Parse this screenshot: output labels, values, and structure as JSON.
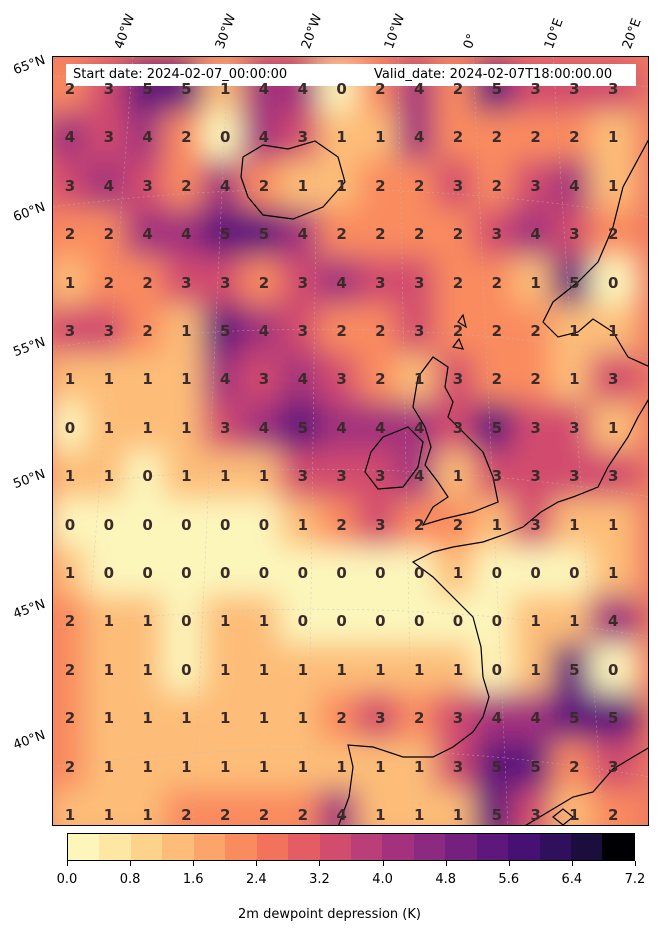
{
  "header": {
    "start_date": "Start date: 2024-02-07_00:00:00",
    "valid_date": "Valid_date: 2024-02-07T18:00:00.00"
  },
  "longitude_labels": [
    "40°W",
    "30°W",
    "20°W",
    "10°W",
    "0°",
    "10°E",
    "20°E"
  ],
  "latitude_labels": [
    "65°N",
    "60°N",
    "55°N",
    "50°N",
    "45°N",
    "40°N"
  ],
  "grid_values": [
    [
      2,
      3,
      5,
      5,
      1,
      4,
      4,
      0,
      2,
      4,
      2,
      5,
      3,
      3,
      3
    ],
    [
      4,
      3,
      4,
      2,
      0,
      4,
      3,
      1,
      1,
      4,
      2,
      2,
      2,
      2,
      1
    ],
    [
      3,
      4,
      3,
      2,
      4,
      2,
      1,
      1,
      2,
      2,
      3,
      2,
      3,
      4,
      1
    ],
    [
      2,
      2,
      4,
      4,
      5,
      5,
      4,
      2,
      2,
      2,
      2,
      3,
      4,
      3,
      2
    ],
    [
      1,
      2,
      2,
      3,
      3,
      2,
      3,
      4,
      3,
      3,
      2,
      2,
      1,
      5,
      0
    ],
    [
      3,
      3,
      2,
      1,
      5,
      4,
      3,
      2,
      2,
      3,
      2,
      2,
      2,
      1,
      1
    ],
    [
      1,
      1,
      1,
      1,
      4,
      3,
      4,
      3,
      2,
      1,
      3,
      2,
      2,
      1,
      3
    ],
    [
      0,
      1,
      1,
      1,
      3,
      4,
      5,
      4,
      4,
      4,
      3,
      5,
      3,
      3,
      1
    ],
    [
      1,
      1,
      0,
      1,
      1,
      1,
      3,
      3,
      3,
      4,
      1,
      3,
      3,
      3,
      3
    ],
    [
      0,
      0,
      0,
      0,
      0,
      0,
      1,
      2,
      3,
      2,
      2,
      1,
      3,
      1,
      1
    ],
    [
      1,
      0,
      0,
      0,
      0,
      0,
      0,
      0,
      0,
      0,
      1,
      0,
      0,
      0,
      1
    ],
    [
      2,
      1,
      1,
      0,
      1,
      1,
      0,
      0,
      0,
      0,
      0,
      0,
      1,
      1,
      4
    ],
    [
      2,
      1,
      1,
      0,
      1,
      1,
      1,
      1,
      1,
      1,
      1,
      0,
      1,
      5,
      0
    ],
    [
      2,
      1,
      1,
      1,
      1,
      1,
      1,
      2,
      3,
      2,
      3,
      4,
      4,
      5,
      5
    ],
    [
      2,
      1,
      1,
      1,
      1,
      1,
      1,
      1,
      1,
      1,
      3,
      5,
      5,
      2,
      3
    ],
    [
      1,
      1,
      1,
      2,
      2,
      2,
      2,
      4,
      1,
      1,
      1,
      5,
      3,
      1,
      2
    ]
  ],
  "colorbar": {
    "label": "2m dewpoint depression (K)",
    "ticks": [
      "0.0",
      "0.8",
      "1.6",
      "2.4",
      "3.2",
      "4.0",
      "4.8",
      "5.6",
      "6.4",
      "7.2"
    ],
    "colors": [
      "#fcf6bb",
      "#fde7a2",
      "#fdd38b",
      "#fdbd78",
      "#fca56a",
      "#fa8b5f",
      "#f3725c",
      "#e55d64",
      "#d24c6e",
      "#ba3e77",
      "#a3317d",
      "#8c2980",
      "#74207f",
      "#5e187c",
      "#471173",
      "#300f5c",
      "#1b0d3d",
      "#000004"
    ]
  },
  "map_colors": {
    "low": "#fdf0ad",
    "mid_low": "#fcb47c",
    "mid": "#ee6d62",
    "mid_high": "#b93d78",
    "high": "#5a177b"
  }
}
